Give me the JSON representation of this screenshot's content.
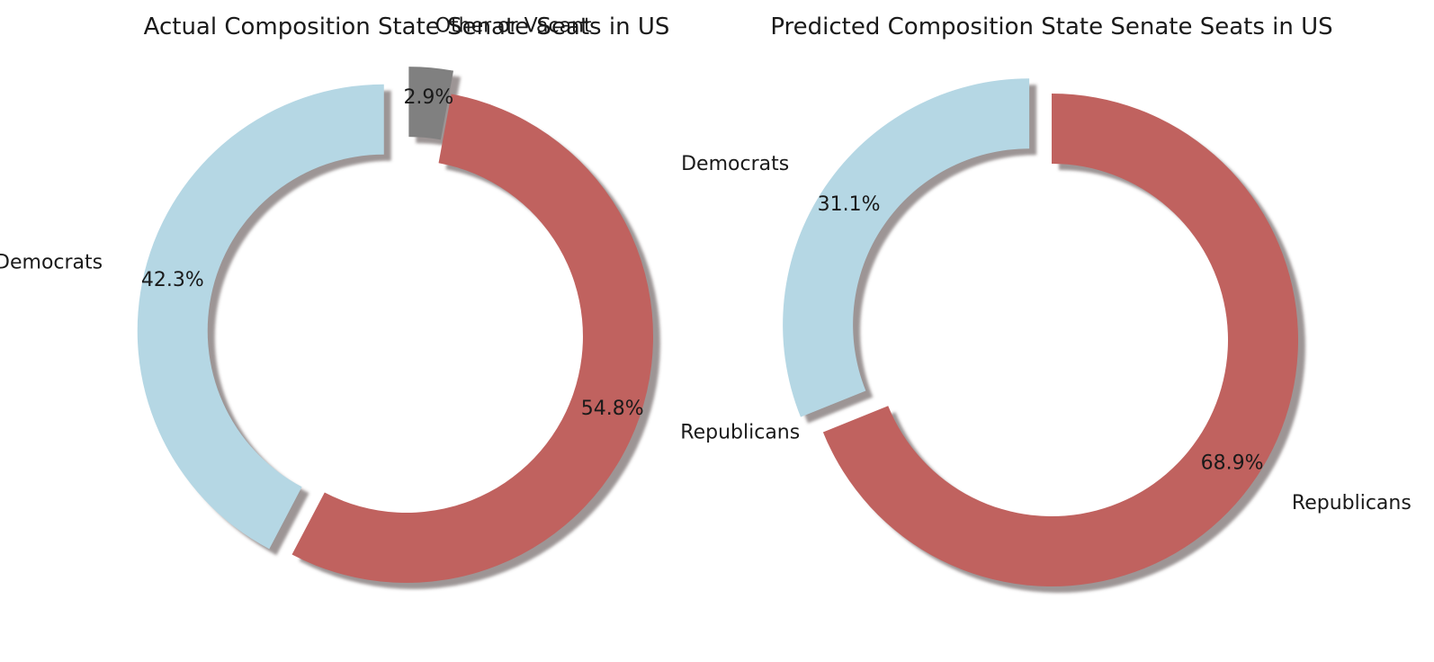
{
  "chart_data": [
    {
      "type": "pie",
      "style": "donut",
      "title": "Actual Composition State Senate Seats in US",
      "categories": [
        "Democrats",
        "Republicans",
        "Other or Vacant"
      ],
      "values": [
        42.3,
        54.8,
        2.9
      ],
      "value_labels": [
        "42.3%",
        "54.8%",
        "2.9%"
      ],
      "colors": [
        "#b5d7e4",
        "#c0625f",
        "#808080"
      ],
      "exploded": [
        "Democrats",
        "Other or Vacant"
      ],
      "shadow": true,
      "start_angle_deg": 90,
      "direction": "counterclockwise"
    },
    {
      "type": "pie",
      "style": "donut",
      "title": "Predicted Composition State Senate Seats in US",
      "categories": [
        "Democrats",
        "Republicans"
      ],
      "values": [
        31.1,
        68.9
      ],
      "value_labels": [
        "31.1%",
        "68.9%"
      ],
      "colors": [
        "#b5d7e4",
        "#c0625f"
      ],
      "exploded": [
        "Democrats"
      ],
      "shadow": true,
      "start_angle_deg": 90,
      "direction": "counterclockwise"
    }
  ]
}
